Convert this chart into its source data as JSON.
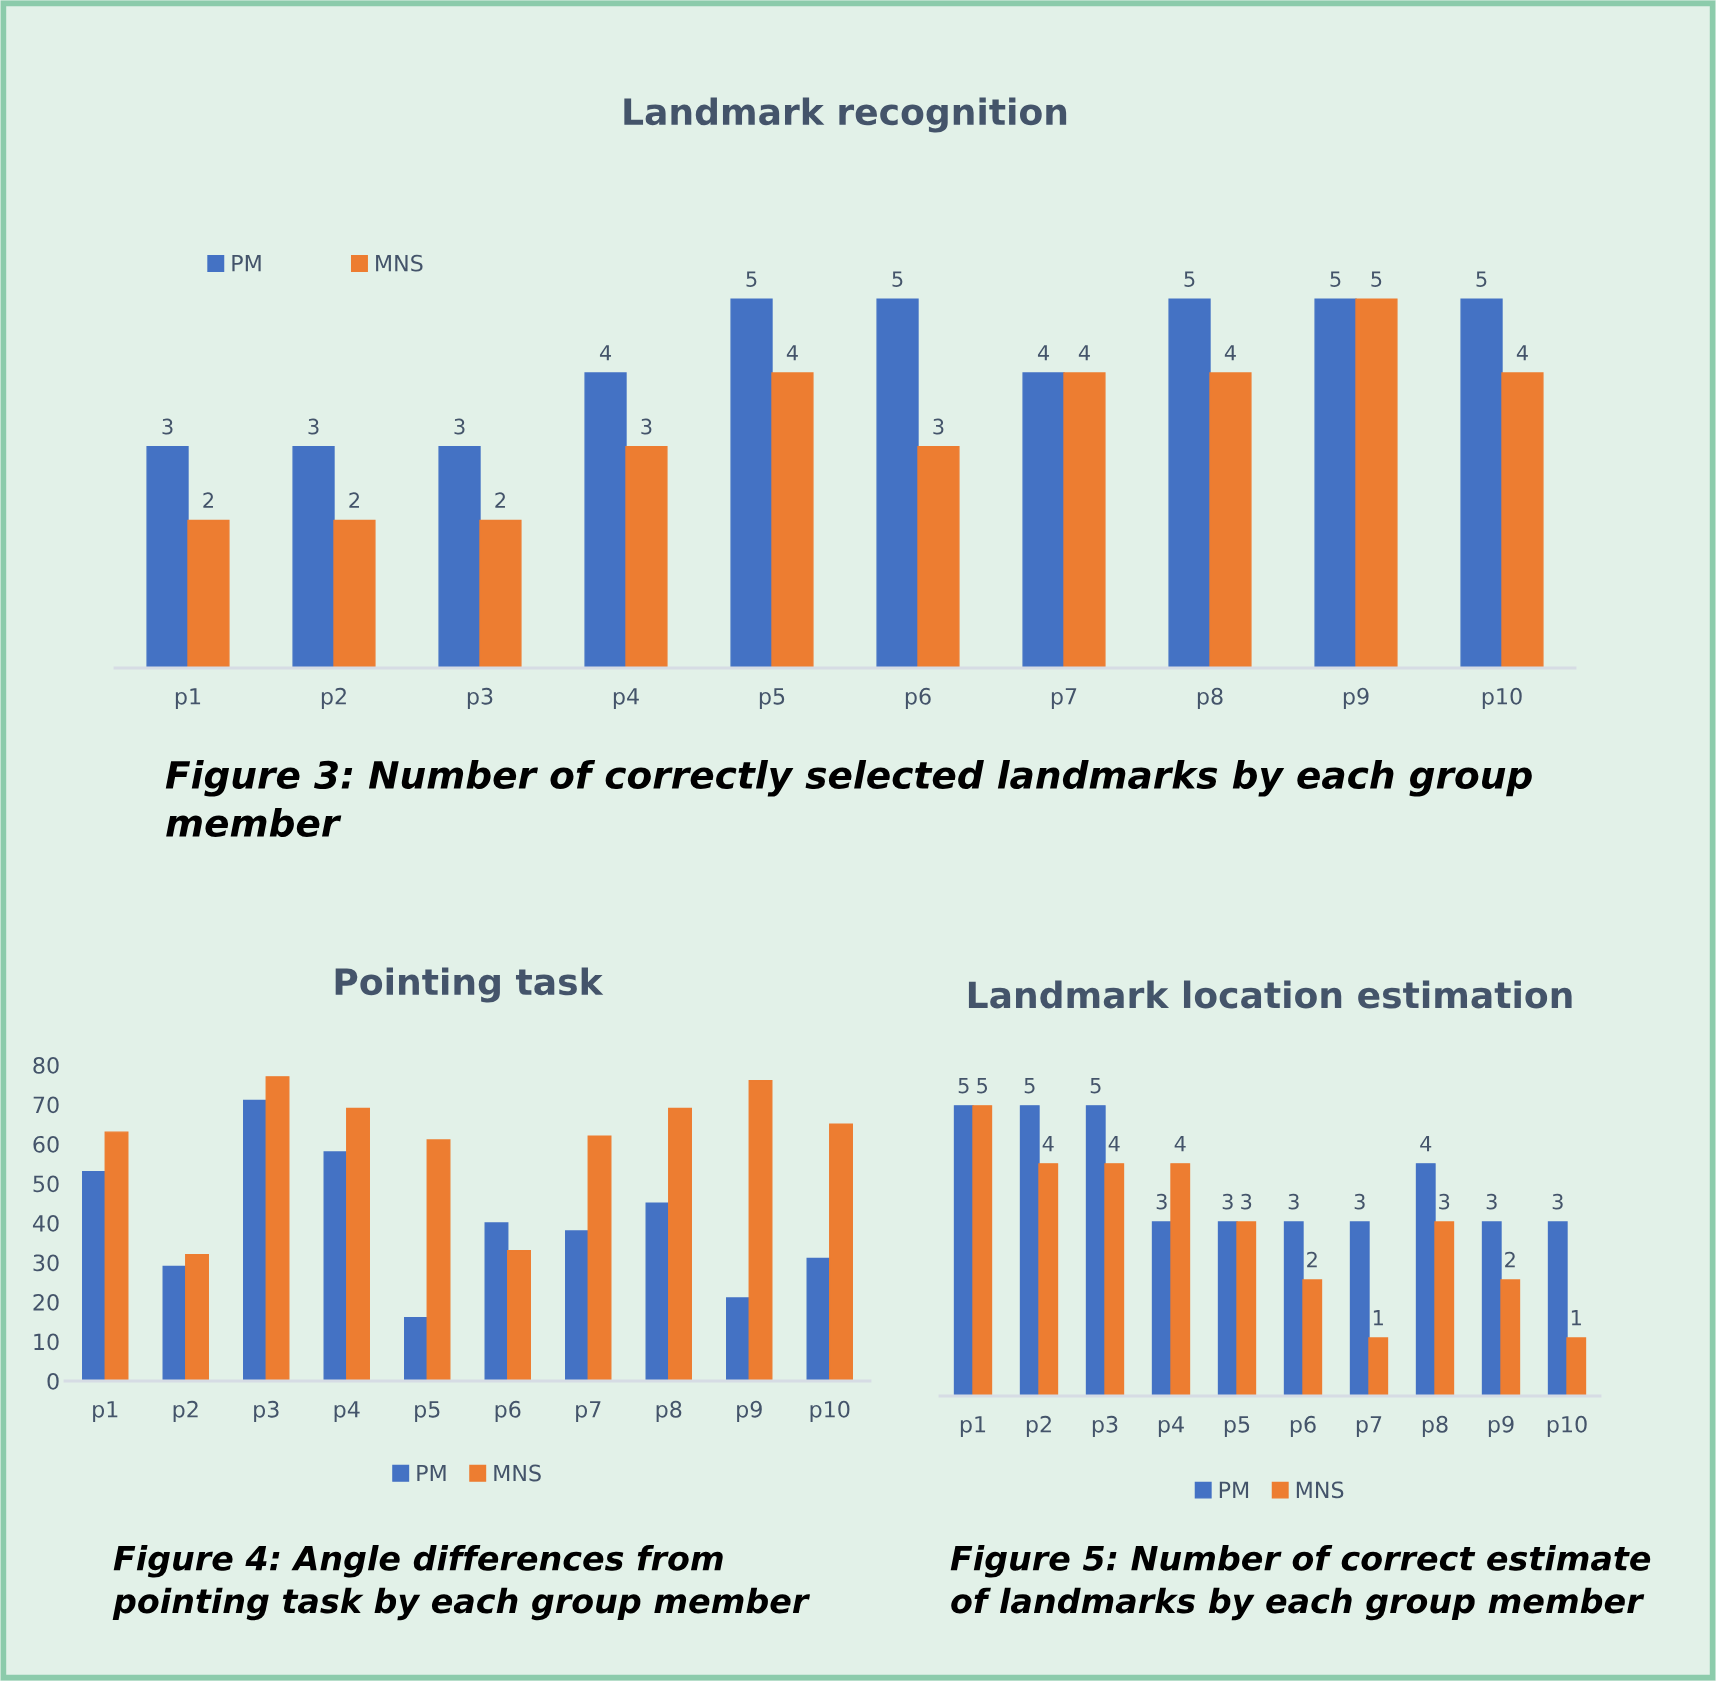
{
  "chart_data": [
    {
      "type": "bar",
      "title": "Landmark recognition",
      "categories": [
        "p1",
        "p2",
        "p3",
        "p4",
        "p5",
        "p6",
        "p7",
        "p8",
        "p9",
        "p10"
      ],
      "series": [
        {
          "name": "PM",
          "color": "#4472c4",
          "values": [
            3,
            3,
            3,
            4,
            5,
            5,
            4,
            5,
            5,
            5
          ]
        },
        {
          "name": "MNS",
          "color": "#ed7d31",
          "values": [
            2,
            2,
            2,
            3,
            4,
            3,
            4,
            4,
            5,
            4
          ]
        }
      ],
      "data_labels": true,
      "legend": "top left",
      "tick_labels": "x",
      "grid": false,
      "annotations": [
        "Figure 3: Number of correctly selected landmarks by each group member"
      ]
    },
    {
      "type": "bar",
      "title": "Pointing task",
      "categories": [
        "p1",
        "p2",
        "p3",
        "p4",
        "p5",
        "p6",
        "p7",
        "p8",
        "p9",
        "p10"
      ],
      "series": [
        {
          "name": "PM",
          "color": "#4472c4",
          "values": [
            53,
            29,
            71,
            58,
            16,
            40,
            38,
            45,
            21,
            31
          ]
        },
        {
          "name": "MNS",
          "color": "#ed7d31",
          "values": [
            63,
            32,
            77,
            69,
            61,
            33,
            62,
            69,
            76,
            65
          ]
        }
      ],
      "ylim": [
        0,
        80
      ],
      "yticks": [
        0,
        10,
        20,
        30,
        40,
        50,
        60,
        70,
        80
      ],
      "legend": "bottom",
      "grid": false,
      "annotations": [
        "Figure 4: Angle differences from pointing task by each group member"
      ]
    },
    {
      "type": "bar",
      "title": "Landmark location estimation",
      "categories": [
        "p1",
        "p2",
        "p3",
        "p4",
        "p5",
        "p6",
        "p7",
        "p8",
        "p9",
        "p10"
      ],
      "series": [
        {
          "name": "PM",
          "color": "#4472c4",
          "values": [
            5,
            5,
            5,
            3,
            3,
            3,
            3,
            4,
            3,
            3
          ]
        },
        {
          "name": "MNS",
          "color": "#ed7d31",
          "values": [
            5,
            4,
            4,
            4,
            3,
            2,
            1,
            3,
            2,
            1
          ]
        }
      ],
      "data_labels": true,
      "legend": "bottom",
      "tick_labels": "x",
      "grid": false,
      "annotations": [
        "Figure 5: Number of correct estimate of landmarks by each group member"
      ]
    }
  ]
}
